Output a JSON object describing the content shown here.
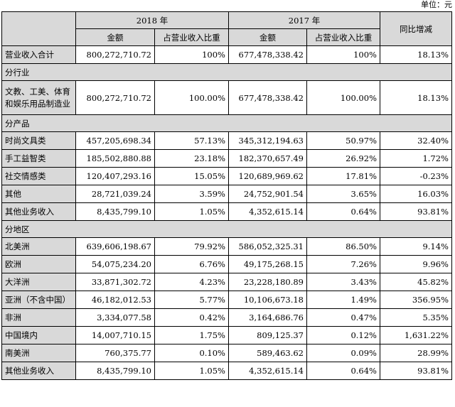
{
  "unit_label": "单位：元",
  "header": {
    "year_2018": "2018 年",
    "year_2017": "2017 年",
    "change": "同比增减",
    "amount": "金额",
    "ratio": "占营业收入比重"
  },
  "total": {
    "label": "营业收入合计",
    "amount_2018": "800,272,710.72",
    "ratio_2018": "100%",
    "amount_2017": "677,478,338.42",
    "ratio_2017": "100%",
    "change": "18.13%"
  },
  "sections": {
    "industry": {
      "title": "分行业",
      "rows": [
        {
          "label": "文教、工美、体育和娱乐用品制造业",
          "amount_2018": "800,272,710.72",
          "ratio_2018": "100.00%",
          "amount_2017": "677,478,338.42",
          "ratio_2017": "100.00%",
          "change": "18.13%"
        }
      ]
    },
    "product": {
      "title": "分产品",
      "rows": [
        {
          "label": "时尚文具类",
          "amount_2018": "457,205,698.34",
          "ratio_2018": "57.13%",
          "amount_2017": "345,312,194.63",
          "ratio_2017": "50.97%",
          "change": "32.40%"
        },
        {
          "label": "手工益智类",
          "amount_2018": "185,502,880.88",
          "ratio_2018": "23.18%",
          "amount_2017": "182,370,657.49",
          "ratio_2017": "26.92%",
          "change": "1.72%"
        },
        {
          "label": "社交情感类",
          "amount_2018": "120,407,293.16",
          "ratio_2018": "15.05%",
          "amount_2017": "120,689,969.62",
          "ratio_2017": "17.81%",
          "change": "-0.23%"
        },
        {
          "label": "其他",
          "amount_2018": "28,721,039.24",
          "ratio_2018": "3.59%",
          "amount_2017": "24,752,901.54",
          "ratio_2017": "3.65%",
          "change": "16.03%"
        },
        {
          "label": "其他业务收入",
          "amount_2018": "8,435,799.10",
          "ratio_2018": "1.05%",
          "amount_2017": "4,352,615.14",
          "ratio_2017": "0.64%",
          "change": "93.81%"
        }
      ]
    },
    "region": {
      "title": "分地区",
      "rows": [
        {
          "label": "北美洲",
          "amount_2018": "639,606,198.67",
          "ratio_2018": "79.92%",
          "amount_2017": "586,052,325.31",
          "ratio_2017": "86.50%",
          "change": "9.14%"
        },
        {
          "label": "欧洲",
          "amount_2018": "54,075,234.20",
          "ratio_2018": "6.76%",
          "amount_2017": "49,175,268.15",
          "ratio_2017": "7.26%",
          "change": "9.96%"
        },
        {
          "label": "大洋洲",
          "amount_2018": "33,871,302.72",
          "ratio_2018": "4.23%",
          "amount_2017": "23,228,180.89",
          "ratio_2017": "3.43%",
          "change": "45.82%"
        },
        {
          "label": "亚洲（不含中国）",
          "amount_2018": "46,182,012.53",
          "ratio_2018": "5.77%",
          "amount_2017": "10,106,673.18",
          "ratio_2017": "1.49%",
          "change": "356.95%"
        },
        {
          "label": "非洲",
          "amount_2018": "3,334,077.58",
          "ratio_2018": "0.42%",
          "amount_2017": "3,164,686.76",
          "ratio_2017": "0.47%",
          "change": "5.35%"
        },
        {
          "label": "中国境内",
          "amount_2018": "14,007,710.15",
          "ratio_2018": "1.75%",
          "amount_2017": "809,125.37",
          "ratio_2017": "0.12%",
          "change": "1,631.22%"
        },
        {
          "label": "南美洲",
          "amount_2018": "760,375.77",
          "ratio_2018": "0.10%",
          "amount_2017": "589,463.62",
          "ratio_2017": "0.09%",
          "change": "28.99%"
        },
        {
          "label": "其他业务收入",
          "amount_2018": "8,435,799.10",
          "ratio_2018": "1.05%",
          "amount_2017": "4,352,615.14",
          "ratio_2017": "0.64%",
          "change": "93.81%"
        }
      ]
    }
  }
}
